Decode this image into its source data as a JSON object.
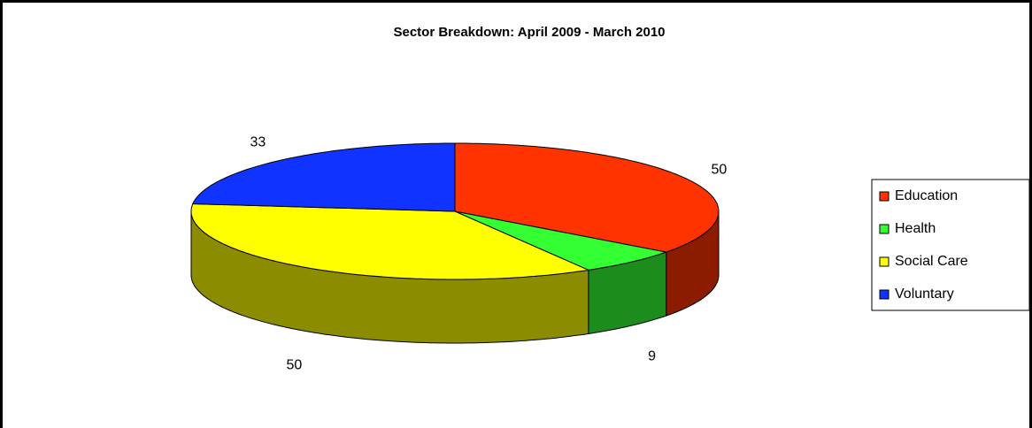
{
  "chart_data": {
    "type": "pie3d",
    "title": "Sector Breakdown: April 2009 - March 2010",
    "categories": [
      "Education",
      "Health",
      "Social Care",
      "Voluntary"
    ],
    "values": [
      50,
      9,
      50,
      33
    ],
    "colors": [
      "#ff3300",
      "#33ff33",
      "#ffff00",
      "#1133ff"
    ],
    "legend": "right"
  }
}
